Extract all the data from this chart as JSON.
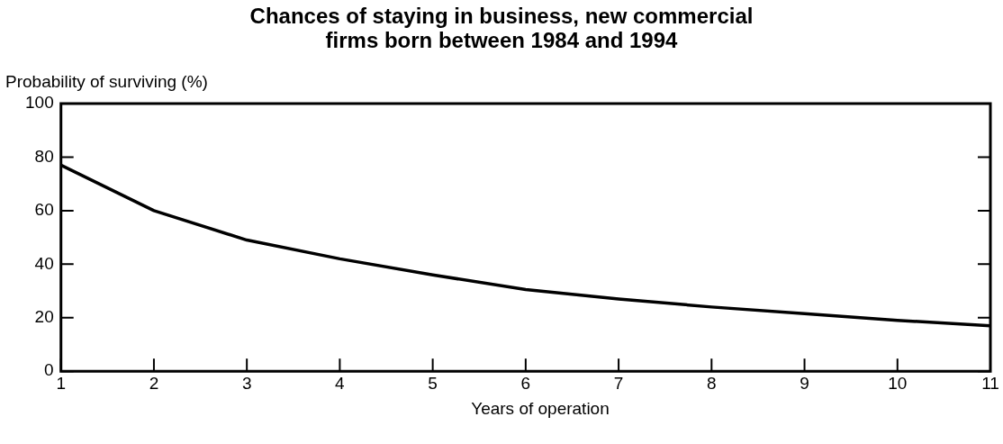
{
  "chart_data": {
    "type": "line",
    "title": "Chances of staying in business, new commercial firms born between 1984 and 1994",
    "ylabel": "Probability of surviving (%)",
    "xlabel": "Years of operation",
    "x": [
      1,
      2,
      3,
      4,
      5,
      6,
      7,
      8,
      9,
      10,
      11
    ],
    "series": [
      {
        "color": "#000000",
        "values": [
          77,
          60,
          49,
          42,
          36,
          30.5,
          27,
          24,
          21.5,
          19,
          17
        ]
      }
    ],
    "xlim": [
      1,
      11
    ],
    "xticks": [
      1,
      2,
      3,
      4,
      5,
      6,
      7,
      8,
      9,
      10,
      11
    ],
    "ylim": [
      0,
      100
    ],
    "yticks": [
      0,
      20,
      40,
      60,
      80,
      100
    ],
    "grid": false,
    "legend": false,
    "marker": "none",
    "line_style": "solid"
  }
}
